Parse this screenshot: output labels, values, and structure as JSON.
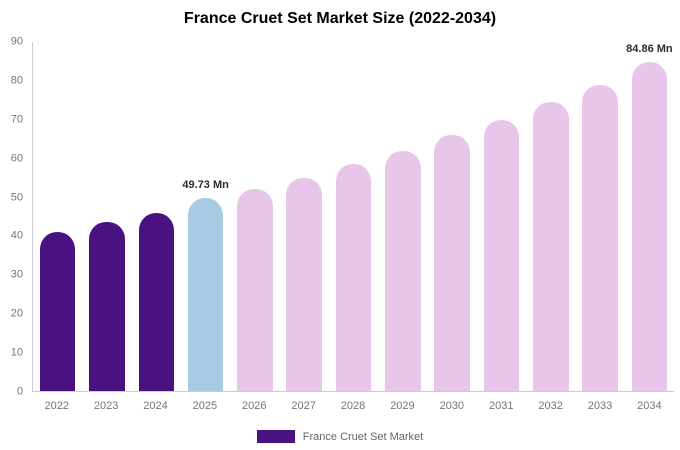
{
  "chart_data": {
    "type": "bar",
    "title": "France Cruet Set Market Size (2022-2034)",
    "categories": [
      "2022",
      "2023",
      "2024",
      "2025",
      "2026",
      "2027",
      "2028",
      "2029",
      "2030",
      "2031",
      "2032",
      "2033",
      "2034"
    ],
    "values": [
      41,
      43.5,
      46,
      49.73,
      52,
      55,
      58.5,
      62,
      66,
      70,
      74.5,
      79,
      84.86
    ],
    "unit": "Mn",
    "bar_colors": [
      "#4a1280",
      "#4a1280",
      "#4a1280",
      "#a6cbe3",
      "#e8c6e9",
      "#e8c6e9",
      "#e8c6e9",
      "#e8c6e9",
      "#e8c6e9",
      "#e8c6e9",
      "#e8c6e9",
      "#e8c6e9",
      "#e8c6e9"
    ],
    "annotations": [
      {
        "category": "2025",
        "text": "49.73 Mn"
      },
      {
        "category": "2034",
        "text": "84.86 Mn"
      }
    ],
    "ylim": [
      0,
      90
    ],
    "y_ticks": [
      0,
      10,
      20,
      30,
      40,
      50,
      60,
      70,
      80,
      90
    ],
    "grid": false,
    "xlabel": "",
    "ylabel": "",
    "legend_position": "bottom",
    "legend": {
      "label": "France Cruet Set Market",
      "color": "#4a1280"
    }
  }
}
